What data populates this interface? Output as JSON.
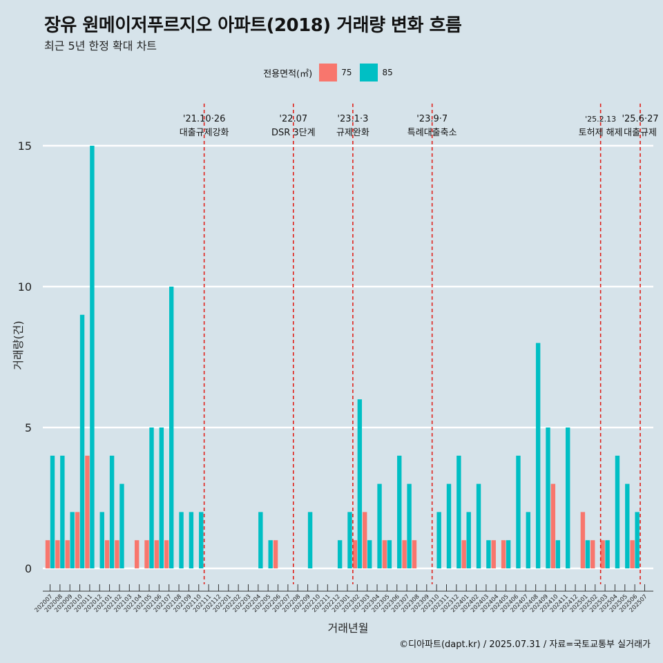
{
  "header": {
    "title": "장유 원메이저푸르지오 아파트(2018) 거래량 변화 흐름",
    "subtitle": "최근 5년 한정 확대 차트"
  },
  "legend": {
    "title": "전용면적(㎡)",
    "items": [
      {
        "label": "75",
        "color": "#f8766d"
      },
      {
        "label": "85",
        "color": "#00bfc4"
      }
    ]
  },
  "caption": "©디아파트(dapt.kr) / 2025.07.31 / 자료=국토교통부 실거래가",
  "chart_data": {
    "type": "bar",
    "xlabel": "거래년월",
    "ylabel": "거래량(건)",
    "ylim": [
      0,
      15
    ],
    "yticks": [
      0,
      5,
      10,
      15
    ],
    "grid": true,
    "legend_position": "top",
    "categories": [
      "202007",
      "202008",
      "202009",
      "202010",
      "202011",
      "202012",
      "202101",
      "202102",
      "202103",
      "202104",
      "202105",
      "202106",
      "202107",
      "202108",
      "202109",
      "202110",
      "202111",
      "202112",
      "202201",
      "202202",
      "202203",
      "202204",
      "202205",
      "202206",
      "202207",
      "202208",
      "202209",
      "202210",
      "202211",
      "202212",
      "202301",
      "202302",
      "202303",
      "202304",
      "202305",
      "202306",
      "202307",
      "202308",
      "202309",
      "202310",
      "202311",
      "202312",
      "202401",
      "202402",
      "202403",
      "202404",
      "202405",
      "202406",
      "202407",
      "202408",
      "202409",
      "202410",
      "202411",
      "202412",
      "202501",
      "202502",
      "202503",
      "202504",
      "202505",
      "202506",
      "202507"
    ],
    "series": [
      {
        "name": "75",
        "color": "#f8766d",
        "values": [
          1,
          1,
          1,
          2,
          4,
          0,
          1,
          1,
          0,
          1,
          1,
          1,
          1,
          0,
          0,
          0,
          0,
          0,
          0,
          0,
          0,
          0,
          0,
          1,
          0,
          0,
          0,
          0,
          0,
          0,
          0,
          1,
          2,
          0,
          1,
          0,
          1,
          1,
          0,
          0,
          0,
          0,
          1,
          0,
          0,
          1,
          1,
          0,
          0,
          0,
          0,
          3,
          0,
          0,
          2,
          1,
          1,
          0,
          0,
          1,
          0
        ]
      },
      {
        "name": "85",
        "color": "#00bfc4",
        "values": [
          4,
          4,
          2,
          9,
          15,
          2,
          4,
          3,
          0,
          0,
          5,
          5,
          10,
          2,
          2,
          2,
          0,
          0,
          0,
          0,
          0,
          2,
          1,
          0,
          0,
          0,
          2,
          0,
          0,
          1,
          2,
          6,
          1,
          3,
          1,
          4,
          3,
          0,
          0,
          2,
          3,
          4,
          2,
          3,
          1,
          0,
          1,
          4,
          2,
          8,
          5,
          1,
          5,
          0,
          1,
          0,
          1,
          4,
          3,
          2,
          0
        ]
      }
    ],
    "events": [
      {
        "date": "'21.10·26",
        "label": "대출규제강화",
        "after": "202110"
      },
      {
        "date": "'22.07",
        "label": "DSR 3단계",
        "after": "202207"
      },
      {
        "date": "'23.1·3",
        "label": "규제완화",
        "after": "202301"
      },
      {
        "date": "'23.9·7",
        "label": "특례대출축소",
        "after": "202309"
      },
      {
        "date": "'25.2.13",
        "label": "토허제 해제",
        "after": "202502"
      },
      {
        "date": "'25.6·27",
        "label": "대출규제",
        "after": "202506"
      }
    ]
  }
}
